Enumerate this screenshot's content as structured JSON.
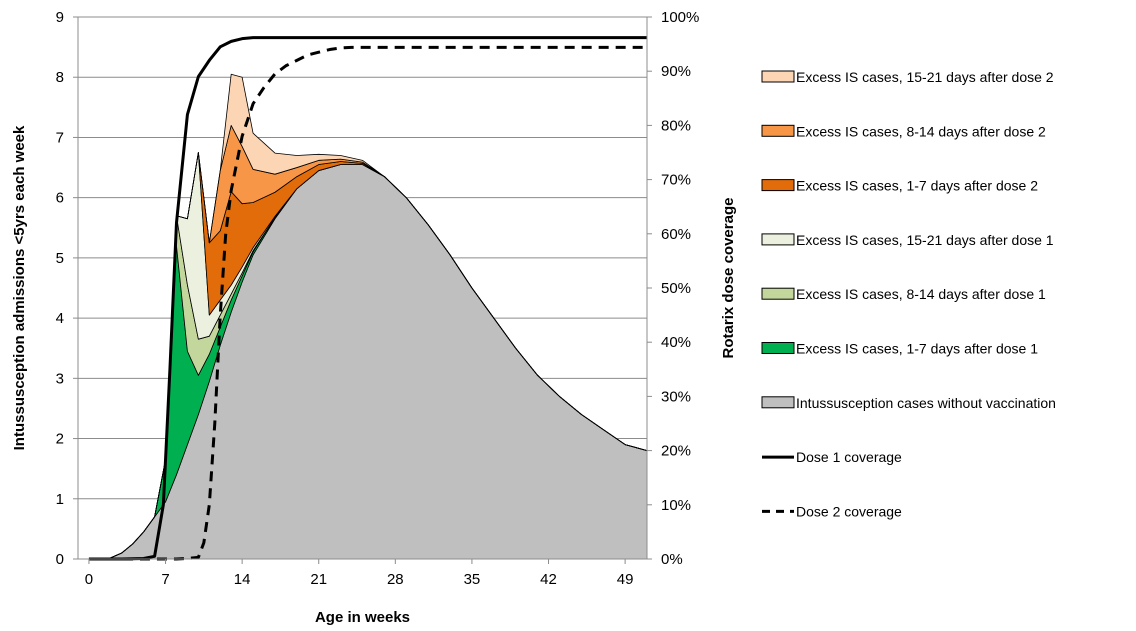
{
  "chart_data": {
    "type": "area",
    "xlabel": "Age in weeks",
    "ylabel": "Intussusception admissions <5yrs each week",
    "y2label": "Rotarix dose coverage",
    "xlim": [
      -1,
      51
    ],
    "xticks": [
      0,
      7,
      14,
      21,
      28,
      35,
      42,
      49
    ],
    "ylim": [
      0,
      9
    ],
    "yticks": [
      0,
      1,
      2,
      3,
      4,
      5,
      6,
      7,
      8,
      9
    ],
    "y2lim": [
      0,
      1
    ],
    "y2ticks": [
      "0%",
      "10%",
      "20%",
      "30%",
      "40%",
      "50%",
      "60%",
      "70%",
      "80%",
      "90%",
      "100%"
    ],
    "grid": "horizontal",
    "legend_position": "right",
    "x": [
      0,
      1,
      2,
      3,
      4,
      5,
      6,
      7,
      8,
      9,
      10,
      11,
      12,
      13,
      14,
      15,
      17,
      19,
      21,
      23,
      25,
      27,
      29,
      31,
      33,
      35,
      37,
      39,
      41,
      43,
      45,
      47,
      49,
      51
    ],
    "stacked_series": [
      {
        "name": "Intussusception cases without vaccination",
        "color": "#bfbfbf",
        "values": [
          0,
          0,
          0.02,
          0.1,
          0.25,
          0.45,
          0.7,
          0.95,
          1.4,
          1.9,
          2.4,
          2.95,
          3.55,
          4.1,
          4.6,
          5.05,
          5.65,
          6.15,
          6.45,
          6.55,
          6.55,
          6.35,
          6.0,
          5.55,
          5.05,
          4.5,
          4.0,
          3.5,
          3.05,
          2.7,
          2.4,
          2.15,
          1.9,
          1.8
        ]
      },
      {
        "name": "Excess IS cases, 1-7 days after dose 1",
        "color": "#00b050",
        "values": [
          0,
          0,
          0,
          0,
          0,
          0,
          0,
          0.7,
          3.8,
          1.55,
          0.65,
          0.45,
          0.3,
          0.2,
          0.1,
          0.05,
          0.02,
          0,
          0,
          0,
          0,
          0,
          0,
          0,
          0,
          0,
          0,
          0,
          0,
          0,
          0,
          0,
          0,
          0
        ]
      },
      {
        "name": "Excess IS cases, 8-14 days after dose 1",
        "color": "#c3d69b",
        "values": [
          0,
          0,
          0,
          0,
          0,
          0,
          0,
          0,
          0.5,
          1.1,
          0.6,
          0.3,
          0.2,
          0.1,
          0.05,
          0.02,
          0,
          0,
          0,
          0,
          0,
          0,
          0,
          0,
          0,
          0,
          0,
          0,
          0,
          0,
          0,
          0,
          0,
          0
        ]
      },
      {
        "name": "Excess IS cases, 15-21 days after dose 1",
        "color": "#ebf1de",
        "values": [
          0,
          0,
          0,
          0,
          0,
          0,
          0,
          0,
          0,
          1.1,
          3.1,
          0.35,
          0.25,
          0.15,
          0.1,
          0.05,
          0.02,
          0,
          0,
          0,
          0,
          0,
          0,
          0,
          0,
          0,
          0,
          0,
          0,
          0,
          0,
          0,
          0,
          0
        ]
      },
      {
        "name": "Excess IS cases, 1-7 days after dose 2",
        "color": "#e26b0a",
        "values": [
          0,
          0,
          0,
          0,
          0,
          0,
          0,
          0,
          0,
          0,
          0,
          1.2,
          1.15,
          1.55,
          1.05,
          0.75,
          0.4,
          0.2,
          0.1,
          0.05,
          0.02,
          0,
          0,
          0,
          0,
          0,
          0,
          0,
          0,
          0,
          0,
          0,
          0,
          0
        ]
      },
      {
        "name": "Excess IS cases, 8-14 days after dose 2",
        "color": "#f79646",
        "values": [
          0,
          0,
          0,
          0,
          0,
          0,
          0,
          0,
          0,
          0,
          0,
          0,
          1.0,
          1.1,
          0.95,
          0.55,
          0.3,
          0.15,
          0.07,
          0.04,
          0.02,
          0,
          0,
          0,
          0,
          0,
          0,
          0,
          0,
          0,
          0,
          0,
          0,
          0
        ]
      },
      {
        "name": "Excess IS cases, 15-21 days after dose 2",
        "color": "#fcd5b4",
        "values": [
          0,
          0,
          0,
          0,
          0,
          0,
          0,
          0,
          0,
          0,
          0,
          0,
          0,
          0.85,
          1.15,
          0.6,
          0.35,
          0.2,
          0.1,
          0.06,
          0.03,
          0,
          0,
          0,
          0,
          0,
          0,
          0,
          0,
          0,
          0,
          0,
          0,
          0
        ]
      }
    ],
    "coverage_series": [
      {
        "name": "Dose 1 coverage",
        "style": "solid",
        "x": [
          0,
          3,
          5,
          6,
          6.8,
          7.4,
          8,
          9,
          10,
          11,
          12,
          13,
          14,
          15,
          18,
          22,
          30,
          40,
          51
        ],
        "values": [
          0,
          0,
          0.001,
          0.005,
          0.1,
          0.35,
          0.62,
          0.82,
          0.89,
          0.92,
          0.945,
          0.955,
          0.96,
          0.962,
          0.962,
          0.962,
          0.962,
          0.962,
          0.962
        ]
      },
      {
        "name": "Dose 2 coverage",
        "style": "dashed",
        "x": [
          0,
          8,
          9,
          10,
          10.5,
          11,
          11.5,
          12,
          12.5,
          13,
          14,
          15,
          16,
          17,
          18,
          19,
          20,
          21,
          22,
          23,
          24,
          25,
          30,
          40,
          51
        ],
        "values": [
          0,
          0,
          0.001,
          0.003,
          0.03,
          0.1,
          0.25,
          0.45,
          0.6,
          0.68,
          0.78,
          0.84,
          0.87,
          0.895,
          0.91,
          0.92,
          0.93,
          0.935,
          0.94,
          0.943,
          0.944,
          0.944,
          0.944,
          0.944,
          0.944
        ]
      }
    ],
    "legend": [
      {
        "label": "Excess IS cases, 15-21 days after dose 2",
        "kind": "box",
        "color": "#fcd5b4"
      },
      {
        "label": "Excess IS cases, 8-14 days after dose 2",
        "kind": "box",
        "color": "#f79646"
      },
      {
        "label": "Excess IS cases, 1-7 days after dose 2",
        "kind": "box",
        "color": "#e26b0a"
      },
      {
        "label": "Excess IS cases, 15-21 days after dose 1",
        "kind": "box",
        "color": "#ebf1de"
      },
      {
        "label": "Excess IS cases, 8-14 days after dose 1",
        "kind": "box",
        "color": "#c3d69b"
      },
      {
        "label": "Excess IS cases, 1-7 days after dose 1",
        "kind": "box",
        "color": "#00b050"
      },
      {
        "label": "Intussusception cases without vaccination",
        "kind": "box",
        "color": "#bfbfbf"
      },
      {
        "label": "Dose 1 coverage",
        "kind": "solid-line",
        "color": "#000000"
      },
      {
        "label": "Dose 2 coverage",
        "kind": "dashed-line",
        "color": "#000000"
      }
    ]
  }
}
